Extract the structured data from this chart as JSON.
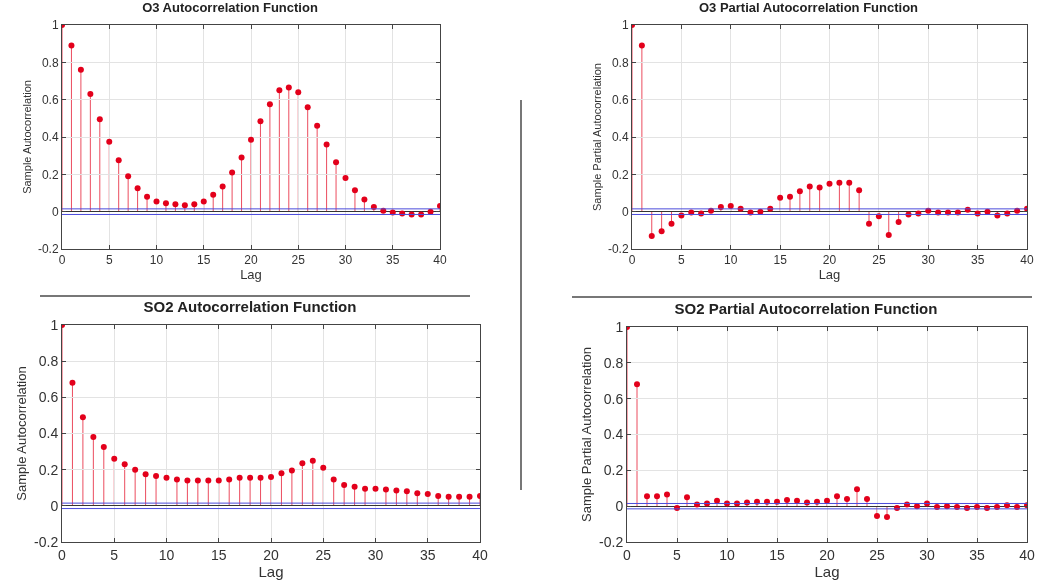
{
  "chart_data": [
    {
      "type": "lollipop",
      "title": "O3 Autocorrelation Function",
      "xlabel": "Lag",
      "ylabel": "Sample Autocorrelation",
      "x": [
        0,
        1,
        2,
        3,
        4,
        5,
        6,
        7,
        8,
        9,
        10,
        11,
        12,
        13,
        14,
        15,
        16,
        17,
        18,
        19,
        20,
        21,
        22,
        23,
        24,
        25,
        26,
        27,
        28,
        29,
        30,
        31,
        32,
        33,
        34,
        35,
        36,
        37,
        38,
        39,
        40
      ],
      "series": [
        {
          "color": "#e3001b",
          "values": [
            1,
            0.89,
            0.76,
            0.63,
            0.495,
            0.375,
            0.275,
            0.19,
            0.125,
            0.08,
            0.055,
            0.045,
            0.04,
            0.035,
            0.04,
            0.055,
            0.09,
            0.135,
            0.21,
            0.29,
            0.385,
            0.485,
            0.575,
            0.65,
            0.665,
            0.64,
            0.56,
            0.46,
            0.36,
            0.265,
            0.18,
            0.115,
            0.065,
            0.025,
            0.005,
            -0.005,
            -0.01,
            -0.015,
            -0.015,
            0,
            0.03
          ]
        }
      ],
      "xlim": [
        0,
        40
      ],
      "xticks": [
        0,
        5,
        10,
        15,
        20,
        25,
        30,
        35,
        40
      ],
      "ylim": [
        -0.2,
        1
      ],
      "yticks": [
        -0.2,
        0,
        0.2,
        0.4,
        0.6,
        0.8,
        1
      ],
      "grid": true,
      "marker": "circle",
      "ref_lines": [
        {
          "axis": "y",
          "value": 0.015,
          "color": "#4b4bdc"
        },
        {
          "axis": "y",
          "value": -0.015,
          "color": "#4b4bdc"
        }
      ]
    },
    {
      "type": "lollipop",
      "title": "O3 Partial Autocorrelation Function",
      "xlabel": "Lag",
      "ylabel": "Sample Partial Autocorrelation",
      "x": [
        0,
        1,
        2,
        3,
        4,
        5,
        6,
        7,
        8,
        9,
        10,
        11,
        12,
        13,
        14,
        15,
        16,
        17,
        18,
        19,
        20,
        21,
        22,
        23,
        24,
        25,
        26,
        27,
        28,
        29,
        30,
        31,
        32,
        33,
        34,
        35,
        36,
        37,
        38,
        39,
        40
      ],
      "series": [
        {
          "color": "#e3001b",
          "values": [
            1,
            0.89,
            -0.13,
            -0.105,
            -0.065,
            -0.02,
            -0.005,
            -0.01,
            0.005,
            0.025,
            0.03,
            0.015,
            -0.005,
            0,
            0.015,
            0.075,
            0.08,
            0.11,
            0.135,
            0.13,
            0.15,
            0.155,
            0.155,
            0.115,
            -0.065,
            -0.025,
            -0.125,
            -0.055,
            -0.015,
            -0.01,
            0.005,
            -0.005,
            -0.005,
            -0.005,
            0.01,
            -0.01,
            0,
            -0.02,
            -0.01,
            0.005,
            0.015
          ]
        }
      ],
      "xlim": [
        0,
        40
      ],
      "xticks": [
        0,
        5,
        10,
        15,
        20,
        25,
        30,
        35,
        40
      ],
      "ylim": [
        -0.2,
        1
      ],
      "yticks": [
        -0.2,
        0,
        0.2,
        0.4,
        0.6,
        0.8,
        1
      ],
      "grid": true,
      "marker": "circle",
      "ref_lines": [
        {
          "axis": "y",
          "value": 0.015,
          "color": "#4b4bdc"
        },
        {
          "axis": "y",
          "value": -0.015,
          "color": "#4b4bdc"
        }
      ]
    },
    {
      "type": "lollipop",
      "title": "SO2 Autocorrelation Function",
      "xlabel": "Lag",
      "ylabel": "Sample Autocorrelation",
      "x": [
        0,
        1,
        2,
        3,
        4,
        5,
        6,
        7,
        8,
        9,
        10,
        11,
        12,
        13,
        14,
        15,
        16,
        17,
        18,
        19,
        20,
        21,
        22,
        23,
        24,
        25,
        26,
        27,
        28,
        29,
        30,
        31,
        32,
        33,
        34,
        35,
        36,
        37,
        38,
        39,
        40
      ],
      "series": [
        {
          "color": "#e3001b",
          "values": [
            1,
            0.68,
            0.49,
            0.38,
            0.325,
            0.26,
            0.23,
            0.2,
            0.175,
            0.165,
            0.155,
            0.145,
            0.14,
            0.14,
            0.14,
            0.14,
            0.145,
            0.155,
            0.155,
            0.155,
            0.16,
            0.18,
            0.195,
            0.235,
            0.25,
            0.21,
            0.145,
            0.115,
            0.105,
            0.095,
            0.095,
            0.09,
            0.085,
            0.08,
            0.07,
            0.065,
            0.055,
            0.05,
            0.05,
            0.05,
            0.055
          ]
        }
      ],
      "xlim": [
        0,
        40
      ],
      "xticks": [
        0,
        5,
        10,
        15,
        20,
        25,
        30,
        35,
        40
      ],
      "ylim": [
        -0.2,
        1
      ],
      "yticks": [
        -0.2,
        0,
        0.2,
        0.4,
        0.6,
        0.8,
        1
      ],
      "grid": true,
      "marker": "circle",
      "ref_lines": [
        {
          "axis": "y",
          "value": 0.015,
          "color": "#4b4bdc"
        },
        {
          "axis": "y",
          "value": -0.015,
          "color": "#4b4bdc"
        }
      ]
    },
    {
      "type": "lollipop",
      "title": "SO2 Partial Autocorrelation Function",
      "xlabel": "Lag",
      "ylabel": "Sample Partial Autocorrelation",
      "x": [
        0,
        1,
        2,
        3,
        4,
        5,
        6,
        7,
        8,
        9,
        10,
        11,
        12,
        13,
        14,
        15,
        16,
        17,
        18,
        19,
        20,
        21,
        22,
        23,
        24,
        25,
        26,
        27,
        28,
        29,
        30,
        31,
        32,
        33,
        34,
        35,
        36,
        37,
        38,
        39,
        40
      ],
      "series": [
        {
          "color": "#e3001b",
          "values": [
            1,
            0.68,
            0.055,
            0.055,
            0.065,
            -0.01,
            0.05,
            0.01,
            0.015,
            0.03,
            0.015,
            0.015,
            0.02,
            0.025,
            0.025,
            0.025,
            0.035,
            0.03,
            0.02,
            0.025,
            0.03,
            0.055,
            0.04,
            0.095,
            0.04,
            -0.055,
            -0.06,
            -0.01,
            0.01,
            0,
            0.015,
            -0.005,
            0,
            -0.005,
            -0.01,
            -0.005,
            -0.01,
            -0.005,
            0.005,
            -0.005,
            0.005
          ]
        }
      ],
      "xlim": [
        0,
        40
      ],
      "xticks": [
        0,
        5,
        10,
        15,
        20,
        25,
        30,
        35,
        40
      ],
      "ylim": [
        -0.2,
        1
      ],
      "yticks": [
        -0.2,
        0,
        0.2,
        0.4,
        0.6,
        0.8,
        1
      ],
      "grid": true,
      "marker": "circle",
      "ref_lines": [
        {
          "axis": "y",
          "value": 0.015,
          "color": "#4b4bdc"
        },
        {
          "axis": "y",
          "value": -0.015,
          "color": "#4b4bdc"
        }
      ]
    }
  ]
}
